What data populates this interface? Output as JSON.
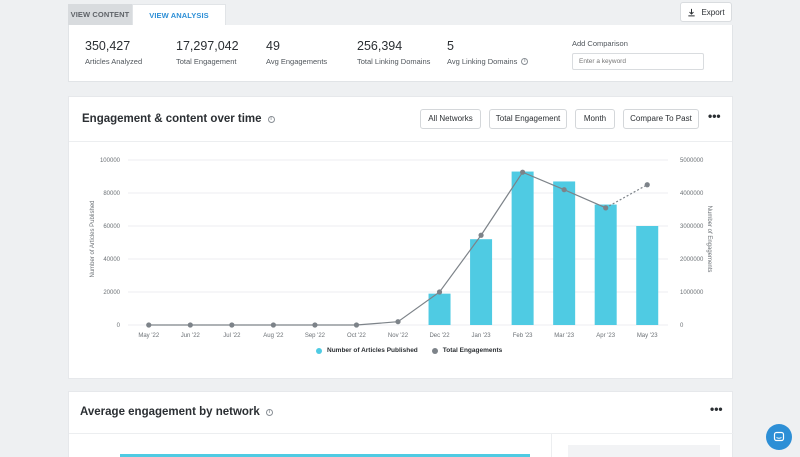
{
  "tabs": [
    {
      "label": "VIEW CONTENT",
      "active": false
    },
    {
      "label": "VIEW ANALYSIS REPORT",
      "active": true
    }
  ],
  "export": {
    "label": "Export"
  },
  "stats": [
    {
      "value": "350,427",
      "label": "Articles Analyzed"
    },
    {
      "value": "17,297,042",
      "label": "Total Engagement"
    },
    {
      "value": "49",
      "label": "Avg Engagements"
    },
    {
      "value": "256,394",
      "label": "Total Linking Domains"
    },
    {
      "value": "5",
      "label": "Avg Linking Domains"
    }
  ],
  "add_comparison": {
    "label": "Add Comparison",
    "placeholder": "Enter a keyword"
  },
  "engagement_card": {
    "title": "Engagement & content over time",
    "buttons": [
      "All Networks",
      "Total Engagement",
      "Month",
      "Compare To Past"
    ],
    "more": "•••"
  },
  "chart_data": {
    "type": "bar",
    "categories": [
      "May '22",
      "Jun '22",
      "Jul '22",
      "Aug '22",
      "Sep '22",
      "Oct '22",
      "Nov '22",
      "Dec '22",
      "Jan '23",
      "Feb '23",
      "Mar '23",
      "Apr '23",
      "May '23"
    ],
    "series": [
      {
        "name": "Number of Articles Published",
        "type": "bar",
        "axis": "left",
        "color": "#4fcbe3",
        "values": [
          0,
          0,
          0,
          0,
          0,
          0,
          0,
          19000,
          52000,
          93000,
          87000,
          73000,
          60000
        ]
      },
      {
        "name": "Total Engagements",
        "type": "line",
        "axis": "right",
        "color": "#7d8389",
        "values": [
          0,
          0,
          0,
          0,
          0,
          0,
          100000,
          1000000,
          2720000,
          4630000,
          4100000,
          3550000,
          4250000
        ]
      }
    ],
    "ylabel": "Number of Articles Published",
    "y2label": "Number of Engagements",
    "ylim": [
      0,
      100000
    ],
    "y2lim": [
      0,
      5000000
    ],
    "yticks": [
      "100000",
      "80000",
      "60000",
      "40000",
      "20000",
      "0"
    ],
    "y2ticks": [
      "5000000",
      "4000000",
      "3000000",
      "2000000",
      "1000000",
      "0"
    ],
    "legend_position": "bottom"
  },
  "avg_card": {
    "title": "Average engagement by network",
    "more": "•••"
  }
}
